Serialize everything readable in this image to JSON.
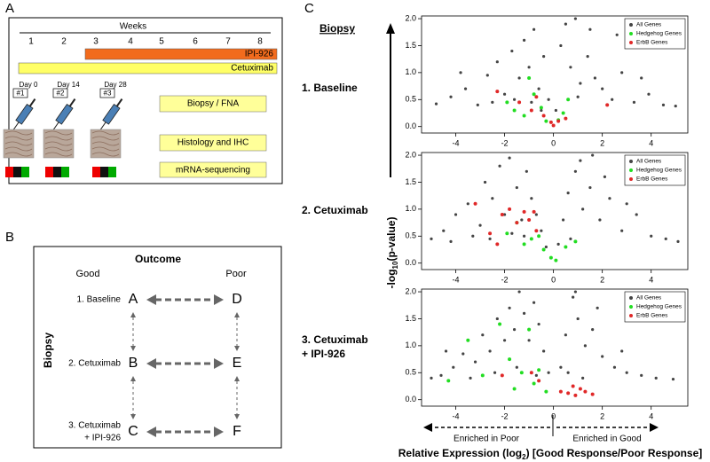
{
  "panel_labels": [
    "A",
    "B",
    "C"
  ],
  "panel_a": {
    "weeks_title": "Weeks",
    "weeks": [
      1,
      2,
      3,
      4,
      5,
      6,
      7,
      8
    ],
    "bars": [
      "IPI-926",
      "Cetuximab"
    ],
    "timepoints": [
      {
        "day": "Day 0",
        "num": "#1"
      },
      {
        "day": "Day 14",
        "num": "#2"
      },
      {
        "day": "Day 28",
        "num": "#3"
      }
    ],
    "boxes": [
      "Biopsy / FNA",
      "Histology and IHC",
      "mRNA-sequencing"
    ]
  },
  "panel_b": {
    "title": "Outcome",
    "good": "Good",
    "poor": "Poor",
    "side": "Biopsy",
    "rows": [
      {
        "label": [
          "1. Baseline"
        ],
        "good": "A",
        "poor": "D"
      },
      {
        "label": [
          "2. Cetuximab"
        ],
        "good": "B",
        "poor": "E"
      },
      {
        "label": [
          "3. Cetuximab",
          "+ IPI-926"
        ],
        "good": "C",
        "poor": "F"
      }
    ]
  },
  "panel_c": {
    "heading": "Biopsy",
    "rows": [
      [
        "1. Baseline"
      ],
      [
        "2. Cetuximab"
      ],
      [
        "3. Cetuximab",
        "+ IPI-926"
      ]
    ],
    "ylabel": [
      "-log",
      "10",
      "(p-value)"
    ],
    "xlabel": [
      "Relative Expression (log",
      "2",
      ") [Good Response/Poor Response]"
    ],
    "left_arrow": "Enriched in Poor",
    "right_arrow": "Enriched in Good"
  },
  "chart_data": [
    {
      "type": "scatter",
      "xlim": [
        -5.4,
        5.5
      ],
      "ylim": [
        -0.12,
        2.05
      ],
      "xticks": [
        -4,
        -2,
        0,
        2,
        4
      ],
      "yticks": [
        {
          "value": 0,
          "label": "0.0"
        },
        0.5,
        {
          "value": 1,
          "label": "1.0"
        },
        1.5,
        {
          "value": 2,
          "label": "2.0"
        }
      ],
      "legend": "top-right",
      "series": [
        {
          "name": "All Genes",
          "color": "#444444",
          "x": [
            -4.8,
            -4.2,
            -3.6,
            -3.1,
            -2.7,
            -2.3,
            -2.0,
            -1.7,
            -1.4,
            -1.2,
            -1.0,
            -0.8,
            -0.6,
            -0.4,
            -0.2,
            0.1,
            0.3,
            0.5,
            0.7,
            0.9,
            1.1,
            1.4,
            1.7,
            2.0,
            2.4,
            2.8,
            3.3,
            3.9,
            4.5,
            5.0,
            -1.6,
            -0.9,
            -0.5,
            0.6,
            1.0,
            1.5,
            -2.5,
            2.6,
            -3.8,
            3.6
          ],
          "values": [
            0.42,
            0.55,
            0.7,
            0.4,
            0.95,
            1.2,
            0.6,
            1.4,
            0.9,
            1.6,
            1.1,
            1.8,
            0.7,
            1.3,
            0.5,
            0.3,
            1.5,
            1.9,
            1.1,
            2.0,
            0.8,
            1.3,
            0.9,
            0.7,
            0.5,
            1.0,
            0.45,
            0.6,
            0.4,
            0.38,
            0.5,
            0.45,
            0.3,
            0.5,
            0.55,
            1.8,
            0.45,
            1.7,
            1.0,
            0.9
          ]
        },
        {
          "name": "Hedgehog Genes",
          "color": "#22dd22",
          "x": [
            -1.9,
            -1.6,
            -1.2,
            -1.0,
            -0.8,
            -0.5,
            -0.3,
            0.2,
            0.4,
            0.6
          ],
          "values": [
            0.45,
            0.3,
            0.2,
            0.9,
            0.6,
            0.35,
            0.1,
            0.12,
            0.25,
            0.5
          ]
        },
        {
          "name": "ErbB Genes",
          "color": "#e02828",
          "x": [
            -2.3,
            -1.4,
            -0.9,
            -0.7,
            -0.4,
            -0.1,
            0.0,
            0.2,
            0.5,
            2.2
          ],
          "values": [
            0.65,
            0.45,
            0.3,
            0.55,
            0.2,
            0.08,
            0.02,
            0.1,
            0.15,
            0.4
          ]
        }
      ]
    },
    {
      "type": "scatter",
      "xlim": [
        -5.4,
        5.5
      ],
      "ylim": [
        -0.12,
        2.05
      ],
      "xticks": [
        -4,
        -2,
        0,
        2,
        4
      ],
      "yticks": [
        {
          "value": 0,
          "label": "0.0"
        },
        0.5,
        {
          "value": 1,
          "label": "1.0"
        },
        1.5,
        {
          "value": 2,
          "label": "2.0"
        }
      ],
      "legend": "top-right",
      "series": [
        {
          "name": "All Genes",
          "color": "#444444",
          "x": [
            -5.0,
            -4.5,
            -4.0,
            -3.5,
            -3.0,
            -2.8,
            -2.5,
            -2.2,
            -2.0,
            -1.8,
            -1.5,
            -1.3,
            -1.1,
            -0.9,
            -0.7,
            -0.5,
            -0.3,
            0.2,
            0.4,
            0.6,
            0.9,
            1.2,
            1.5,
            1.9,
            2.3,
            2.8,
            3.4,
            4.0,
            4.6,
            5.1,
            -3.3,
            -2.6,
            -1.7,
            -1.2,
            0.7,
            1.1,
            2.1,
            3.0,
            -4.2,
            1.6
          ],
          "values": [
            0.45,
            0.6,
            0.9,
            1.1,
            0.7,
            1.5,
            1.2,
            1.8,
            0.9,
            1.95,
            1.4,
            0.8,
            1.7,
            1.2,
            0.9,
            0.6,
            0.3,
            0.35,
            0.8,
            1.3,
            1.7,
            1.0,
            1.4,
            0.8,
            1.2,
            0.6,
            0.9,
            0.5,
            0.45,
            0.4,
            0.5,
            0.45,
            0.55,
            0.5,
            0.45,
            1.9,
            1.6,
            1.1,
            0.4,
            2.0
          ]
        },
        {
          "name": "Hedgehog Genes",
          "color": "#22dd22",
          "x": [
            -1.9,
            -1.5,
            -1.2,
            -0.9,
            -0.6,
            -0.4,
            -0.1,
            0.1,
            0.5,
            0.9
          ],
          "values": [
            0.55,
            0.75,
            0.35,
            0.45,
            0.5,
            0.25,
            0.1,
            0.05,
            0.3,
            0.4
          ]
        },
        {
          "name": "ErbB Genes",
          "color": "#e02828",
          "x": [
            -3.2,
            -2.6,
            -2.1,
            -1.8,
            -1.5,
            -1.2,
            -1.0,
            -0.7,
            -0.8,
            -2.3
          ],
          "values": [
            1.1,
            0.55,
            0.9,
            1.0,
            0.75,
            0.95,
            0.8,
            0.6,
            0.95,
            0.35
          ]
        }
      ]
    },
    {
      "type": "scatter",
      "xlim": [
        -5.4,
        5.5
      ],
      "ylim": [
        -0.12,
        2.05
      ],
      "xticks": [
        -4,
        -2,
        0,
        2,
        4
      ],
      "yticks": [
        {
          "value": 0,
          "label": "0.0"
        },
        0.5,
        {
          "value": 1,
          "label": "1.0"
        },
        1.5,
        {
          "value": 2,
          "label": "2.0"
        }
      ],
      "legend": "top-right",
      "series": [
        {
          "name": "All Genes",
          "color": "#444444",
          "x": [
            -5.0,
            -4.6,
            -4.1,
            -3.7,
            -3.2,
            -2.9,
            -2.6,
            -2.3,
            -2.0,
            -1.8,
            -1.6,
            -1.4,
            -1.2,
            -1.0,
            -0.8,
            -0.6,
            -0.4,
            -0.2,
            0.3,
            0.5,
            0.8,
            1.0,
            1.3,
            1.6,
            2.0,
            2.5,
            3.0,
            3.6,
            4.2,
            4.9,
            -3.4,
            -2.4,
            -1.5,
            -0.7,
            0.6,
            1.2,
            1.8,
            2.8,
            -4.4,
            0.9
          ],
          "values": [
            0.4,
            0.45,
            0.6,
            0.85,
            0.7,
            1.2,
            0.9,
            1.5,
            1.1,
            1.7,
            1.3,
            2.0,
            1.6,
            1.1,
            1.8,
            1.4,
            0.9,
            0.5,
            0.6,
            1.2,
            1.9,
            1.5,
            1.0,
            1.3,
            0.8,
            0.6,
            0.5,
            0.45,
            0.4,
            0.38,
            0.4,
            0.5,
            0.6,
            0.45,
            0.5,
            0.4,
            1.7,
            0.9,
            0.9,
            2.0
          ]
        },
        {
          "name": "Hedgehog Genes",
          "color": "#22dd22",
          "x": [
            -4.3,
            -3.5,
            -2.9,
            -2.2,
            -1.8,
            -1.3,
            -1.0,
            -0.8,
            -0.6,
            -1.6,
            -0.3
          ],
          "values": [
            0.35,
            1.1,
            0.45,
            1.4,
            0.75,
            0.5,
            1.3,
            0.3,
            0.55,
            0.2,
            0.15
          ]
        },
        {
          "name": "ErbB Genes",
          "color": "#e02828",
          "x": [
            -2.1,
            -0.9,
            -0.6,
            0.3,
            0.6,
            0.9,
            1.1,
            1.3,
            1.6,
            0.8
          ],
          "values": [
            0.45,
            0.5,
            0.35,
            0.15,
            0.12,
            0.08,
            0.2,
            0.15,
            0.1,
            0.25
          ]
        }
      ]
    }
  ]
}
